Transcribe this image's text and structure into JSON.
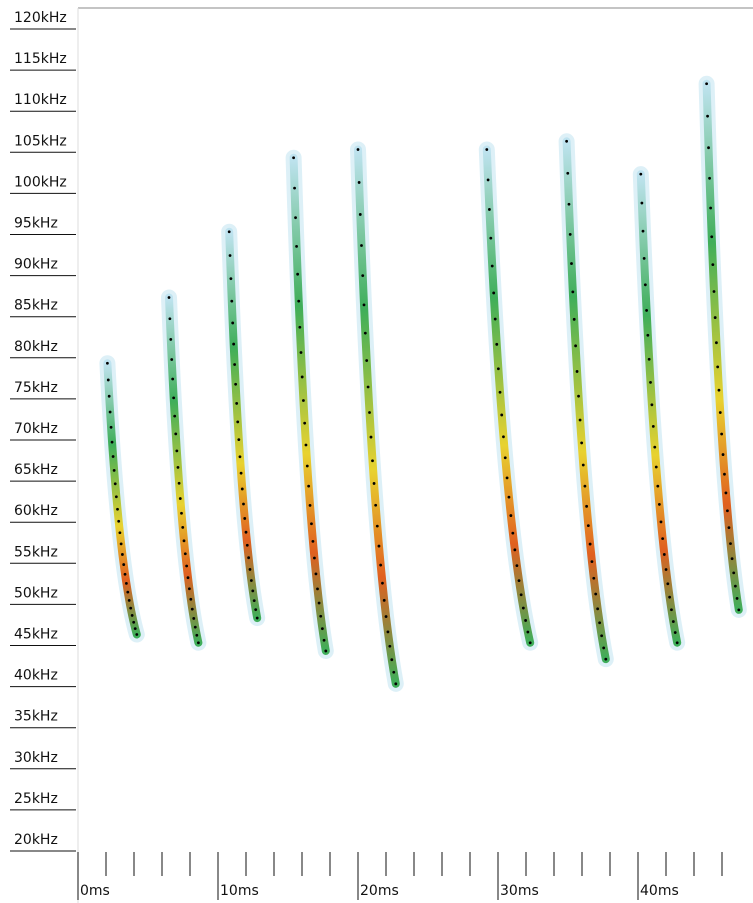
{
  "chart_data": {
    "type": "spectrogram",
    "ylim": [
      17,
      121
    ],
    "yticks": [
      {
        "value": 120,
        "label": "120kHz"
      },
      {
        "value": 115,
        "label": "115kHz"
      },
      {
        "value": 110,
        "label": "110kHz"
      },
      {
        "value": 105,
        "label": "105kHz"
      },
      {
        "value": 100,
        "label": "100kHz"
      },
      {
        "value": 95,
        "label": "95kHz"
      },
      {
        "value": 90,
        "label": "90kHz"
      },
      {
        "value": 85,
        "label": "85kHz"
      },
      {
        "value": 80,
        "label": "80kHz"
      },
      {
        "value": 75,
        "label": "75kHz"
      },
      {
        "value": 70,
        "label": "70kHz"
      },
      {
        "value": 65,
        "label": "65kHz"
      },
      {
        "value": 60,
        "label": "60kHz"
      },
      {
        "value": 55,
        "label": "55kHz"
      },
      {
        "value": 50,
        "label": "50kHz"
      },
      {
        "value": 45,
        "label": "45kHz"
      },
      {
        "value": 40,
        "label": "40kHz"
      },
      {
        "value": 35,
        "label": "35kHz"
      },
      {
        "value": 30,
        "label": "30kHz"
      },
      {
        "value": 25,
        "label": "25kHz"
      },
      {
        "value": 20,
        "label": "20kHz"
      }
    ],
    "xlim": [
      0,
      48
    ],
    "xticks": [
      {
        "value": 0,
        "label": "0ms"
      },
      {
        "value": 10,
        "label": "10ms"
      },
      {
        "value": 20,
        "label": "20ms"
      },
      {
        "value": 30,
        "label": "30ms"
      },
      {
        "value": 40,
        "label": "40ms"
      }
    ],
    "xminorticks": [
      2,
      4,
      6,
      8,
      12,
      14,
      16,
      18,
      22,
      24,
      26,
      28,
      32,
      34,
      36,
      38,
      42,
      44,
      46
    ],
    "series": [
      {
        "x": [
          2.1,
          4.2
        ],
        "values": [
          78,
          45
        ]
      },
      {
        "x": [
          6.5,
          8.6
        ],
        "values": [
          86,
          44
        ]
      },
      {
        "x": [
          10.8,
          12.8
        ],
        "values": [
          94,
          47
        ]
      },
      {
        "x": [
          15.4,
          17.7
        ],
        "values": [
          103,
          43
        ]
      },
      {
        "x": [
          20,
          22.7
        ],
        "values": [
          104,
          39
        ]
      },
      {
        "x": [
          29.2,
          32.3
        ],
        "values": [
          104,
          44
        ]
      },
      {
        "x": [
          34.9,
          37.7
        ],
        "values": [
          105,
          42
        ]
      },
      {
        "x": [
          40.2,
          42.8
        ],
        "values": [
          101,
          44
        ]
      },
      {
        "x": [
          44.9,
          47.2
        ],
        "values": [
          112,
          48
        ]
      }
    ]
  }
}
